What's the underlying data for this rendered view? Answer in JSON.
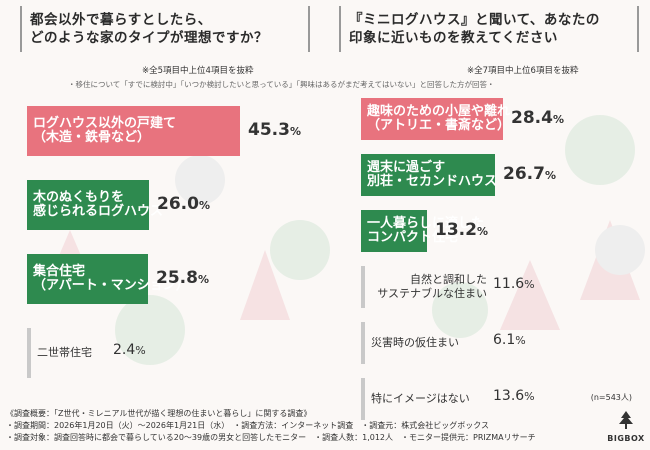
{
  "colors": {
    "pink": "#e8737e",
    "green": "#2e8a4f",
    "gray": "#c9c9c9",
    "bg": "#fbf8f6"
  },
  "left": {
    "title_line1": "都会以外で暮らすとしたら、",
    "title_line2": "どのような家のタイプが理想ですか？",
    "subtitle": "※全5項目中上位4項目を抜粋"
  },
  "right": {
    "title_line1": "『ミニログハウス』と聞いて、あなたの",
    "title_line2": "印象に近いものを教えてください",
    "subtitle": "※全7項目中上位6項目を抜粋"
  },
  "note": "・移住について「すでに検討中」「いつか検討したいと思っている」「興味はあるがまだ考えてはいない」と回答した方が回答・",
  "n_label": "(n=543人)",
  "logo_text": "BIGBOX",
  "footer": [
    "《調査概要：「Z世代・ミレニアル世代が描く理想の住まいと暮らし」に関する調査》",
    "・調査期間：2026年1月20日（火）〜2026年1月21日（水）　・調査方法：インターネット調査　・調査元：株式会社ビッグボックス",
    "・調査対象：調査回答時に都会で暮らしている20〜39歳の男女と回答したモニター　・調査人数：1,012人　・モニター提供元：PRIZMAリサーチ"
  ],
  "chart_data": [
    {
      "type": "bar",
      "title": "都会以外で暮らすとしたら、どのような家のタイプが理想ですか？",
      "unit": "%",
      "categories": [
        [
          "ログハウス以外の戸建て",
          "（木造・鉄骨など）"
        ],
        [
          "木のぬくもりを",
          "感じられるログハウス"
        ],
        [
          "集合住宅",
          "（アパート・マンション）"
        ],
        [
          "二世帯住宅"
        ]
      ],
      "values": [
        45.3,
        26.0,
        25.8,
        2.4
      ],
      "colors": [
        "pink",
        "green",
        "green",
        "gray"
      ]
    },
    {
      "type": "bar",
      "title": "『ミニログハウス』と聞いて、あなたの印象に近いものを教えてください",
      "unit": "%",
      "categories": [
        [
          "趣味のための小屋や離れ",
          "（アトリエ・書斎など）"
        ],
        [
          "週末に過ごす",
          "別荘・セカンドハウス"
        ],
        [
          "一人暮らしに適した",
          "コンパクト住宅"
        ],
        [
          "自然と調和した",
          "サステナブルな住まい"
        ],
        [
          "災害時の仮住まい"
        ],
        [
          "特にイメージはない"
        ]
      ],
      "values": [
        28.4,
        26.7,
        13.2,
        11.6,
        6.1,
        13.6
      ],
      "colors": [
        "pink",
        "green",
        "green",
        "gray",
        "gray",
        "gray"
      ]
    }
  ]
}
